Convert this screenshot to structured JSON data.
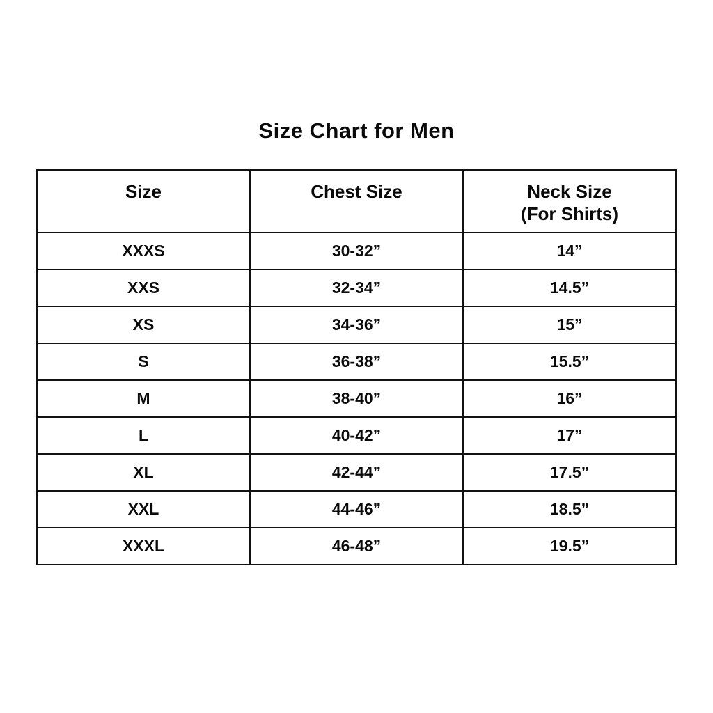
{
  "page": {
    "background_color": "#ffffff",
    "text_color": "#0a0a0a",
    "border_color": "#111111"
  },
  "chart_data": {
    "type": "table",
    "title": "Size Chart for Men",
    "columns": [
      {
        "label": "Size"
      },
      {
        "label": "Chest Size"
      },
      {
        "label": "Neck Size",
        "sublabel": "(For Shirts)"
      }
    ],
    "rows": [
      {
        "size": "XXXS",
        "chest": "30-32”",
        "neck": "14”"
      },
      {
        "size": "XXS",
        "chest": "32-34”",
        "neck": "14.5”"
      },
      {
        "size": "XS",
        "chest": "34-36”",
        "neck": "15”"
      },
      {
        "size": "S",
        "chest": "36-38”",
        "neck": "15.5”"
      },
      {
        "size": "M",
        "chest": "38-40”",
        "neck": "16”"
      },
      {
        "size": "L",
        "chest": "40-42”",
        "neck": "17”"
      },
      {
        "size": "XL",
        "chest": "42-44”",
        "neck": "17.5”"
      },
      {
        "size": "XXL",
        "chest": "44-46”",
        "neck": "18.5”"
      },
      {
        "size": "XXXL",
        "chest": "46-48”",
        "neck": "19.5”"
      }
    ],
    "layout": {
      "grid": true,
      "column_widths_equal": true,
      "header_rows": 1,
      "data_rows": 9
    }
  }
}
